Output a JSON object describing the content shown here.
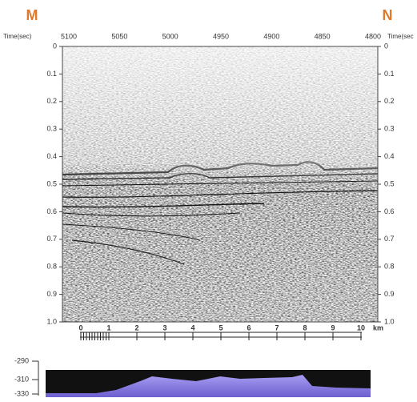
{
  "figure": {
    "left_label": "M",
    "right_label": "N",
    "top_axis": {
      "left_title": "Time(sec)",
      "right_title": "Time(sec",
      "labels": [
        "5100",
        "5050",
        "5000",
        "4950",
        "4900",
        "4850",
        "4800"
      ]
    },
    "time_axis": [
      "0",
      "0.1",
      "0.2",
      "0.3",
      "0.4",
      "0.5",
      "0.6",
      "0.7",
      "0.8",
      "0.9",
      "1.0"
    ],
    "scale_bar": {
      "labels": [
        "0",
        "1",
        "2",
        "3",
        "4",
        "5",
        "6",
        "7",
        "8",
        "9",
        "10"
      ],
      "unit": "km"
    },
    "bathymetry_axis": [
      "-290",
      "-310",
      "-330"
    ]
  }
}
